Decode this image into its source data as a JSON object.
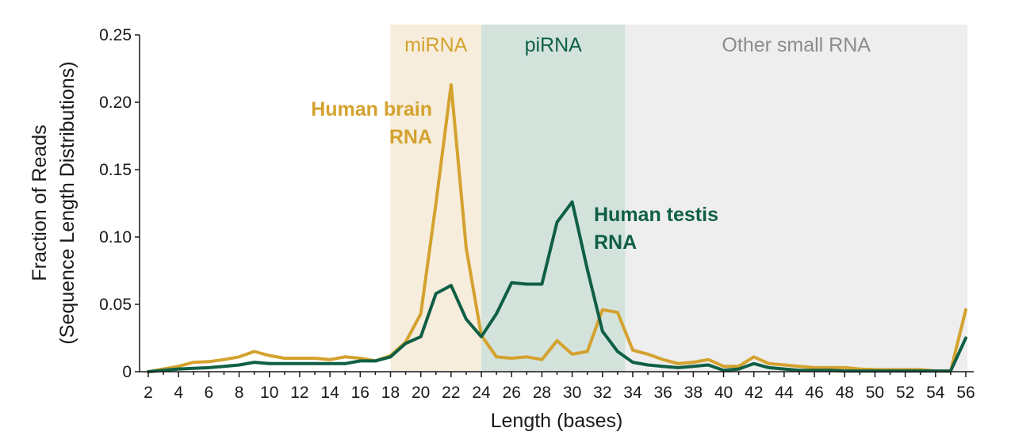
{
  "chart_data": {
    "type": "line",
    "title": "",
    "xlabel": "Length (bases)",
    "ylabel_line1": "Fraction of Reads",
    "ylabel_line2": "(Sequence Length Distributions)",
    "xlim": [
      2,
      56
    ],
    "ylim": [
      0,
      0.25
    ],
    "x_ticks": [
      2,
      4,
      6,
      8,
      10,
      12,
      14,
      16,
      18,
      20,
      22,
      24,
      26,
      28,
      30,
      32,
      34,
      36,
      38,
      40,
      42,
      44,
      46,
      48,
      50,
      52,
      54,
      56
    ],
    "y_ticks": [
      0,
      0.05,
      0.1,
      0.15,
      0.2,
      0.25
    ],
    "y_tick_labels": [
      "0",
      "0.05",
      "0.10",
      "0.15",
      "0.20",
      "0.25"
    ],
    "grid": false,
    "regions": [
      {
        "label": "miRNA",
        "x_start": 18,
        "x_end": 24,
        "fill": "#f6eddc",
        "label_color": "#d4a22e"
      },
      {
        "label": "piRNA",
        "x_start": 24,
        "x_end": 33.5,
        "fill": "#d3e3dc",
        "label_color": "#0f5f45"
      },
      {
        "label": "Other small RNA",
        "x_start": 33.5,
        "x_end": 56,
        "fill": "#eeeeee",
        "label_color": "#8c8c8c"
      }
    ],
    "x": [
      2,
      3,
      4,
      5,
      6,
      7,
      8,
      9,
      10,
      11,
      12,
      13,
      14,
      15,
      16,
      17,
      18,
      19,
      20,
      21,
      22,
      23,
      24,
      25,
      26,
      27,
      28,
      29,
      30,
      31,
      32,
      33,
      34,
      35,
      36,
      37,
      38,
      39,
      40,
      41,
      42,
      43,
      44,
      45,
      46,
      47,
      48,
      49,
      50,
      51,
      52,
      53,
      54,
      55,
      56
    ],
    "series": [
      {
        "name": "Human brain RNA",
        "label_lines": [
          "Human brain",
          "RNA"
        ],
        "color": "#d4a22e",
        "values": [
          0,
          0.002,
          0.004,
          0.007,
          0.0075,
          0.009,
          0.011,
          0.015,
          0.012,
          0.01,
          0.01,
          0.01,
          0.009,
          0.011,
          0.01,
          0.008,
          0.012,
          0.022,
          0.043,
          0.125,
          0.213,
          0.092,
          0.027,
          0.011,
          0.01,
          0.011,
          0.009,
          0.023,
          0.013,
          0.015,
          0.046,
          0.044,
          0.016,
          0.013,
          0.009,
          0.006,
          0.007,
          0.009,
          0.004,
          0.004,
          0.011,
          0.006,
          0.005,
          0.004,
          0.003,
          0.003,
          0.003,
          0.002,
          0.0015,
          0.0015,
          0.0015,
          0.0015,
          0.0005,
          0.0005,
          0.046
        ]
      },
      {
        "name": "Human testis RNA",
        "label_lines": [
          "Human testis",
          "RNA"
        ],
        "color": "#0f5f45",
        "values": [
          0,
          0.001,
          0.002,
          0.0025,
          0.003,
          0.004,
          0.005,
          0.007,
          0.006,
          0.006,
          0.006,
          0.006,
          0.006,
          0.006,
          0.008,
          0.008,
          0.011,
          0.021,
          0.026,
          0.058,
          0.064,
          0.039,
          0.026,
          0.043,
          0.066,
          0.065,
          0.065,
          0.111,
          0.126,
          0.076,
          0.03,
          0.015,
          0.007,
          0.005,
          0.004,
          0.003,
          0.004,
          0.005,
          0.001,
          0.002,
          0.006,
          0.003,
          0.002,
          0.001,
          0.001,
          0.001,
          0.0005,
          0.0005,
          0.0005,
          0.0005,
          0.0005,
          0.0005,
          0.0005,
          0.0005,
          0.025
        ]
      }
    ]
  }
}
